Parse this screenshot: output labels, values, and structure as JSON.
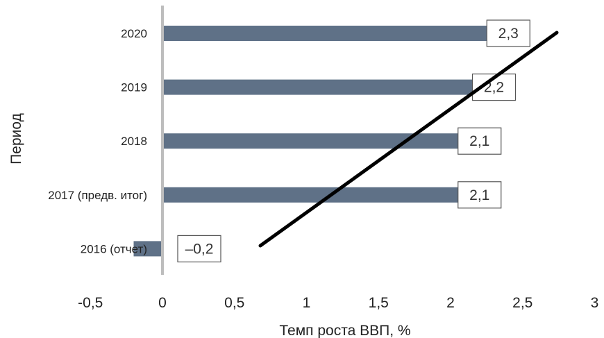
{
  "chart_data": {
    "type": "bar",
    "orientation": "horizontal",
    "categories": [
      "2016 (отчет)",
      "2017 (предв. итог)",
      "2018",
      "2019",
      "2020"
    ],
    "values": [
      -0.2,
      2.1,
      2.1,
      2.2,
      2.3
    ],
    "data_labels": [
      "–0,2",
      "2,1",
      "2,1",
      "2,2",
      "2,3"
    ],
    "xlabel": "Темп роста ВВП, %",
    "ylabel": "Период",
    "xlim": [
      -0.5,
      3
    ],
    "xticks": [
      -0.5,
      0,
      0.5,
      1,
      1.5,
      2,
      2.5,
      3
    ],
    "xtick_labels": [
      "-0,5",
      "0",
      "0,5",
      "1",
      "1,5",
      "2",
      "2,5",
      "3"
    ],
    "grid": false,
    "legend": "none",
    "bar_color": "#5f7187",
    "axis_color": "#bdbdbd",
    "trend_line_color": "#000000"
  }
}
